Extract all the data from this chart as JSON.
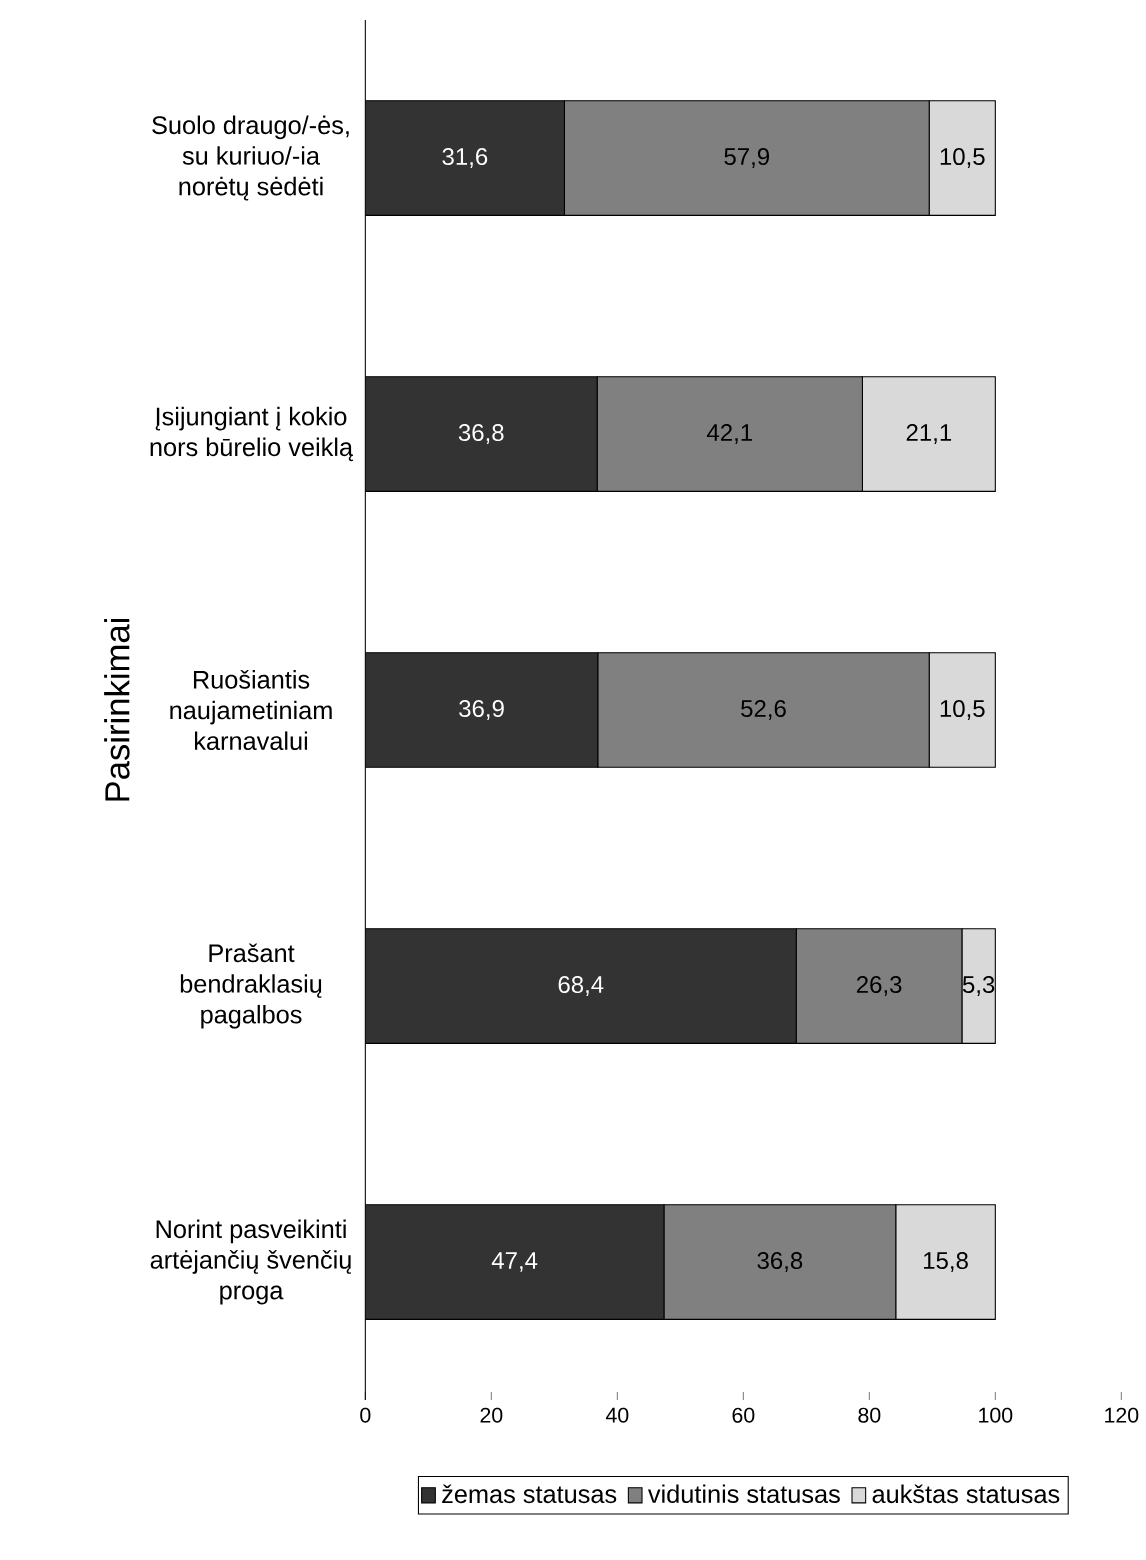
{
  "chart_data": {
    "type": "bar",
    "orientation": "horizontal",
    "stacked": true,
    "categories": [
      "Suolo draugo/-ės, su kuriuo/-ia norėtų sėdėti",
      "Įsijungiant į kokio nors būrelio veiklą",
      "Ruošiantis naujametiniam karnavalui",
      "Prašant bendraklasių pagalbos",
      "Norint pasveikinti artėjančių švenčių proga"
    ],
    "ylabel": "Pasirinkimai",
    "series": [
      {
        "name": "žemas statusas",
        "color": "#333333",
        "values": [
          31.6,
          36.8,
          36.9,
          68.4,
          47.4
        ],
        "value_labels": [
          "31,6",
          "36,8",
          "36,9",
          "68,4",
          "47,4"
        ]
      },
      {
        "name": "vidutinis statusas",
        "color": "#808080",
        "values": [
          57.9,
          42.1,
          52.6,
          26.3,
          36.8
        ],
        "value_labels": [
          "57,9",
          "42,1",
          "52,6",
          "26,3",
          "36,8"
        ]
      },
      {
        "name": "aukštas statusas",
        "color": "#d9d9d9",
        "values": [
          10.5,
          21.1,
          10.5,
          5.3,
          15.8
        ],
        "value_labels": [
          "10,5",
          "21,1",
          "10,5",
          "5,3",
          "15,8"
        ]
      }
    ],
    "xlim": [
      0,
      120
    ],
    "xticks": [
      0,
      20,
      40,
      60,
      80,
      100,
      120
    ],
    "grid": false,
    "legend": "bottom"
  }
}
